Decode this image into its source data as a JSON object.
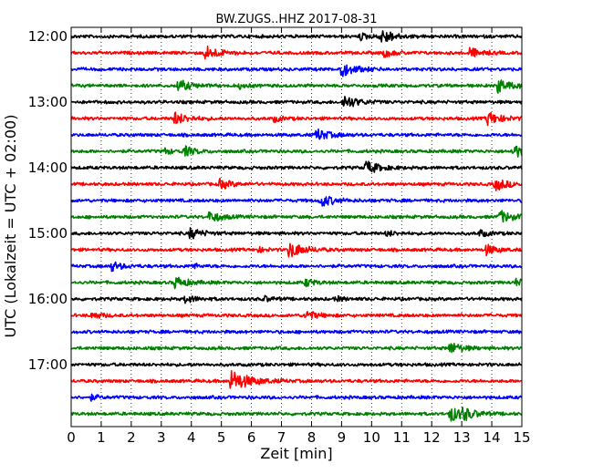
{
  "chart_data": {
    "type": "line",
    "title": "BW.ZUGS..HHZ 2017-08-31",
    "xlabel": "Zeit  [min]",
    "ylabel": "UTC (Lokalzeit = UTC + 02:00)",
    "xlim": [
      0,
      15
    ],
    "x_ticks": [
      "0",
      "1",
      "2",
      "3",
      "4",
      "5",
      "6",
      "7",
      "8",
      "9",
      "10",
      "11",
      "12",
      "13",
      "14",
      "15"
    ],
    "y_ticks": [
      {
        "label": "12:00",
        "trace": 0
      },
      {
        "label": "13:00",
        "trace": 4
      },
      {
        "label": "14:00",
        "trace": 8
      },
      {
        "label": "15:00",
        "trace": 12
      },
      {
        "label": "16:00",
        "trace": 16
      },
      {
        "label": "17:00",
        "trace": 20
      }
    ],
    "grid_x": true,
    "colors": [
      "#000000",
      "#ff0000",
      "#0000ff",
      "#008000"
    ],
    "traces": [
      {
        "start": "12:00",
        "color": "#000000",
        "events": [
          [
            9.6,
            0.4
          ],
          [
            10.25,
            0.75
          ],
          [
            10.5,
            0.3
          ]
        ]
      },
      {
        "start": "12:15",
        "color": "#ff0000",
        "events": [
          [
            4.45,
            0.85
          ],
          [
            10.4,
            0.5
          ],
          [
            13.25,
            0.6
          ]
        ]
      },
      {
        "start": "12:30",
        "color": "#0000ff",
        "events": [
          [
            8.95,
            0.9
          ]
        ]
      },
      {
        "start": "12:45",
        "color": "#008000",
        "events": [
          [
            3.55,
            0.7
          ],
          [
            5.6,
            0.3
          ],
          [
            14.2,
            0.8
          ]
        ]
      },
      {
        "start": "13:00",
        "color": "#000000",
        "events": [
          [
            9.05,
            0.85
          ]
        ]
      },
      {
        "start": "13:15",
        "color": "#ff0000",
        "events": [
          [
            3.4,
            0.8
          ],
          [
            6.75,
            0.35
          ],
          [
            13.85,
            0.8
          ]
        ]
      },
      {
        "start": "13:30",
        "color": "#0000ff",
        "events": [
          [
            8.15,
            0.75
          ]
        ]
      },
      {
        "start": "13:45",
        "color": "#008000",
        "events": [
          [
            3.75,
            0.6
          ],
          [
            3.1,
            0.35
          ],
          [
            14.7,
            0.8
          ]
        ]
      },
      {
        "start": "14:00",
        "color": "#000000",
        "events": [
          [
            9.8,
            0.8
          ]
        ]
      },
      {
        "start": "14:15",
        "color": "#ff0000",
        "events": [
          [
            4.95,
            0.6
          ],
          [
            14.1,
            0.75
          ]
        ]
      },
      {
        "start": "14:30",
        "color": "#0000ff",
        "events": [
          [
            8.3,
            0.75
          ]
        ]
      },
      {
        "start": "14:45",
        "color": "#008000",
        "events": [
          [
            4.6,
            0.65
          ],
          [
            14.25,
            0.75
          ]
        ]
      },
      {
        "start": "15:00",
        "color": "#000000",
        "events": [
          [
            3.95,
            0.65
          ],
          [
            10.5,
            0.35
          ],
          [
            13.6,
            0.4
          ]
        ]
      },
      {
        "start": "15:15",
        "color": "#ff0000",
        "events": [
          [
            7.25,
            0.95
          ],
          [
            13.8,
            0.6
          ],
          [
            6.2,
            0.3
          ]
        ]
      },
      {
        "start": "15:30",
        "color": "#0000ff",
        "events": [
          [
            1.35,
            0.55
          ],
          [
            4.0,
            0.3
          ]
        ]
      },
      {
        "start": "15:45",
        "color": "#008000",
        "events": [
          [
            3.45,
            0.7
          ],
          [
            7.8,
            0.45
          ],
          [
            14.8,
            0.4
          ]
        ]
      },
      {
        "start": "16:00",
        "color": "#000000",
        "events": [
          [
            3.8,
            0.5
          ],
          [
            6.4,
            0.35
          ],
          [
            8.8,
            0.3
          ]
        ]
      },
      {
        "start": "16:15",
        "color": "#ff0000",
        "events": [
          [
            0.7,
            0.45
          ],
          [
            7.8,
            0.6
          ]
        ]
      },
      {
        "start": "16:30",
        "color": "#0000ff",
        "events": []
      },
      {
        "start": "16:45",
        "color": "#008000",
        "events": [
          [
            12.6,
            0.7
          ]
        ]
      },
      {
        "start": "17:00",
        "color": "#000000",
        "events": []
      },
      {
        "start": "17:15",
        "color": "#ff0000",
        "events": [
          [
            5.3,
            1.3
          ]
        ]
      },
      {
        "start": "17:30",
        "color": "#0000ff",
        "events": [
          [
            0.65,
            0.3
          ]
        ]
      },
      {
        "start": "17:45",
        "color": "#008000",
        "events": [
          [
            12.6,
            0.9
          ],
          [
            13.0,
            0.6
          ]
        ]
      }
    ]
  }
}
